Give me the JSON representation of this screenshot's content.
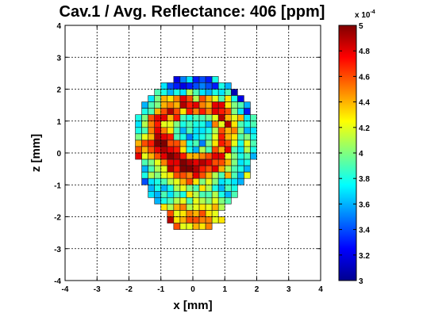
{
  "chart_data": {
    "type": "heatmap",
    "title": "Cav.1 / Avg. Reflectance: 406 [ppm]",
    "xlabel": "x [mm]",
    "ylabel": "z [mm]",
    "xlim": [
      -4,
      4
    ],
    "ylim": [
      -4,
      4
    ],
    "xticks": [
      "-4",
      "-3",
      "-2",
      "-1",
      "0",
      "1",
      "2",
      "3",
      "4"
    ],
    "yticks": [
      "-4",
      "-3",
      "-2",
      "-1",
      "0",
      "1",
      "2",
      "3",
      "4"
    ],
    "grid": true,
    "cell_size_mm": 0.2,
    "grid_x0_mm": -2.2,
    "grid_z0_mm": 2.4,
    "grid_rows": 24,
    "grid_cols": 22,
    "values_note": "values in units of 1e-4, row 0 is top (z = 2.4 mm), column 0 is left (x = -2.2 mm); null = no data",
    "values": [
      [
        null,
        null,
        null,
        null,
        null,
        null,
        null,
        null,
        3.2,
        3.5,
        3.7,
        3.3,
        3.4,
        3.3,
        3.8,
        null,
        null,
        null,
        null,
        null,
        null,
        null
      ],
      [
        null,
        null,
        null,
        null,
        null,
        null,
        3.7,
        3.4,
        3.3,
        3.2,
        3.3,
        3.4,
        3.5,
        3.4,
        3.3,
        3.8,
        3.6,
        null,
        null,
        null,
        null,
        null
      ],
      [
        null,
        null,
        null,
        null,
        null,
        3.9,
        3.8,
        3.6,
        3.8,
        3.7,
        4.1,
        3.9,
        3.7,
        3.6,
        3.8,
        3.7,
        3.9,
        3.1,
        null,
        null,
        null,
        null
      ],
      [
        null,
        null,
        null,
        null,
        3.7,
        4.0,
        4.4,
        4.3,
        4.5,
        4.8,
        4.6,
        4.1,
        4.6,
        4.4,
        4.2,
        3.9,
        4.3,
        3.8,
        3.2,
        null,
        null,
        null
      ],
      [
        null,
        null,
        null,
        3.6,
        3.9,
        4.0,
        4.4,
        4.5,
        4.4,
        4.9,
        4.7,
        4.8,
        4.5,
        4.4,
        4.8,
        4.8,
        4.3,
        4.0,
        3.9,
        3.6,
        null,
        null
      ],
      [
        null,
        null,
        null,
        3.8,
        3.9,
        4.4,
        4.6,
        4.9,
        4.6,
        4.3,
        4.7,
        4.5,
        4.7,
        4.5,
        4.8,
        4.7,
        4.6,
        4.0,
        3.7,
        3.3,
        null,
        null
      ],
      [
        null,
        null,
        3.8,
        4.0,
        4.6,
        4.8,
        4.8,
        4.4,
        4.7,
        3.9,
        3.8,
        3.9,
        3.9,
        4.0,
        4.2,
        4.9,
        4.4,
        4.2,
        4.4,
        3.7,
        3.9,
        null
      ],
      [
        null,
        null,
        3.7,
        4.1,
        4.5,
        4.7,
        4.2,
        4.2,
        4.0,
        3.8,
        3.9,
        3.8,
        3.8,
        3.6,
        4.5,
        4.2,
        4.9,
        4.3,
        3.9,
        3.8,
        3.9,
        null
      ],
      [
        null,
        null,
        3.8,
        3.9,
        4.5,
        4.8,
        4.5,
        4.3,
        3.9,
        3.6,
        3.9,
        3.7,
        3.7,
        3.8,
        4.1,
        4.6,
        4.4,
        4.5,
        4.0,
        3.6,
        3.7,
        null
      ],
      [
        null,
        null,
        4.0,
        4.2,
        4.4,
        4.9,
        4.8,
        4.7,
        3.9,
        3.8,
        3.5,
        3.7,
        3.8,
        3.9,
        4.2,
        4.7,
        4.4,
        4.3,
        3.9,
        4.0,
        3.8,
        null
      ],
      [
        null,
        null,
        4.4,
        4.6,
        4.7,
        5.0,
        5.0,
        4.6,
        4.6,
        4.4,
        3.8,
        3.9,
        3.5,
        4.0,
        4.3,
        4.7,
        4.6,
        4.2,
        3.8,
        4.2,
        3.9,
        null
      ],
      [
        null,
        null,
        4.6,
        4.4,
        4.6,
        4.8,
        4.9,
        4.8,
        4.7,
        4.3,
        3.8,
        3.6,
        4.1,
        3.9,
        4.6,
        4.4,
        4.8,
        3.9,
        3.7,
        4.1,
        3.8,
        null
      ],
      [
        null,
        null,
        4.8,
        4.2,
        4.4,
        4.6,
        4.8,
        5.0,
        4.9,
        4.7,
        4.4,
        4.4,
        4.5,
        4.6,
        4.8,
        4.8,
        4.2,
        4.0,
        3.8,
        3.9,
        3.6,
        null
      ],
      [
        null,
        null,
        null,
        3.9,
        4.0,
        4.2,
        4.5,
        4.8,
        4.8,
        5.0,
        4.9,
        4.8,
        4.9,
        4.8,
        4.6,
        4.6,
        4.4,
        4.0,
        3.7,
        3.8,
        null,
        null
      ],
      [
        null,
        null,
        null,
        3.6,
        3.9,
        4.1,
        4.2,
        4.9,
        4.7,
        5.0,
        5.0,
        4.9,
        4.7,
        4.6,
        4.8,
        4.4,
        4.1,
        3.9,
        3.8,
        3.6,
        null,
        null
      ],
      [
        null,
        null,
        null,
        3.8,
        4.1,
        4.0,
        4.2,
        4.3,
        4.6,
        4.6,
        4.5,
        4.8,
        4.6,
        4.4,
        4.1,
        3.9,
        4.4,
        3.9,
        3.6,
        4.2,
        null,
        null
      ],
      [
        null,
        null,
        null,
        3.4,
        3.7,
        3.8,
        3.9,
        4.1,
        4.2,
        4.4,
        4.6,
        4.3,
        4.0,
        4.2,
        4.0,
        3.7,
        3.8,
        3.7,
        3.6,
        null,
        null,
        null
      ],
      [
        null,
        null,
        null,
        null,
        3.6,
        3.8,
        3.6,
        3.8,
        4.1,
        4.2,
        4.0,
        3.9,
        4.3,
        4.1,
        3.8,
        3.6,
        3.9,
        3.8,
        null,
        null,
        null,
        null
      ],
      [
        null,
        null,
        null,
        null,
        3.7,
        3.6,
        3.9,
        3.7,
        3.9,
        3.8,
        4.3,
        4.1,
        3.9,
        3.9,
        4.1,
        3.8,
        3.6,
        3.9,
        null,
        null,
        null,
        null
      ],
      [
        null,
        null,
        null,
        null,
        null,
        3.6,
        3.8,
        3.9,
        4.1,
        4.2,
        3.9,
        4.2,
        4.1,
        4.0,
        4.2,
        4.0,
        3.9,
        null,
        null,
        null,
        null,
        null
      ],
      [
        null,
        null,
        null,
        null,
        null,
        null,
        4.3,
        4.1,
        4.4,
        4.5,
        4.1,
        4.2,
        4.3,
        4.2,
        4.4,
        4.1,
        null,
        null,
        null,
        null,
        null,
        null
      ],
      [
        null,
        null,
        null,
        null,
        null,
        null,
        null,
        4.6,
        4.2,
        4.3,
        4.5,
        4.4,
        4.6,
        4.3,
        4.2,
        null,
        null,
        null,
        null,
        null,
        null,
        null
      ],
      [
        null,
        null,
        null,
        null,
        null,
        null,
        null,
        4.9,
        4.3,
        4.4,
        4.6,
        4.6,
        4.5,
        4.5,
        4.2,
        4.3,
        null,
        null,
        null,
        null,
        null,
        null
      ],
      [
        null,
        null,
        null,
        null,
        null,
        null,
        null,
        null,
        4.6,
        4.2,
        4.2,
        4.4,
        4.3,
        4.5,
        null,
        null,
        null,
        null,
        null,
        null,
        null,
        null
      ]
    ],
    "colorbar": {
      "min": 3,
      "max": 5,
      "ticks": [
        "3",
        "3.2",
        "3.4",
        "3.6",
        "3.8",
        "4",
        "4.2",
        "4.4",
        "4.6",
        "4.8",
        "5"
      ],
      "exponent_label": "x 10",
      "exponent_power": "-4"
    }
  }
}
